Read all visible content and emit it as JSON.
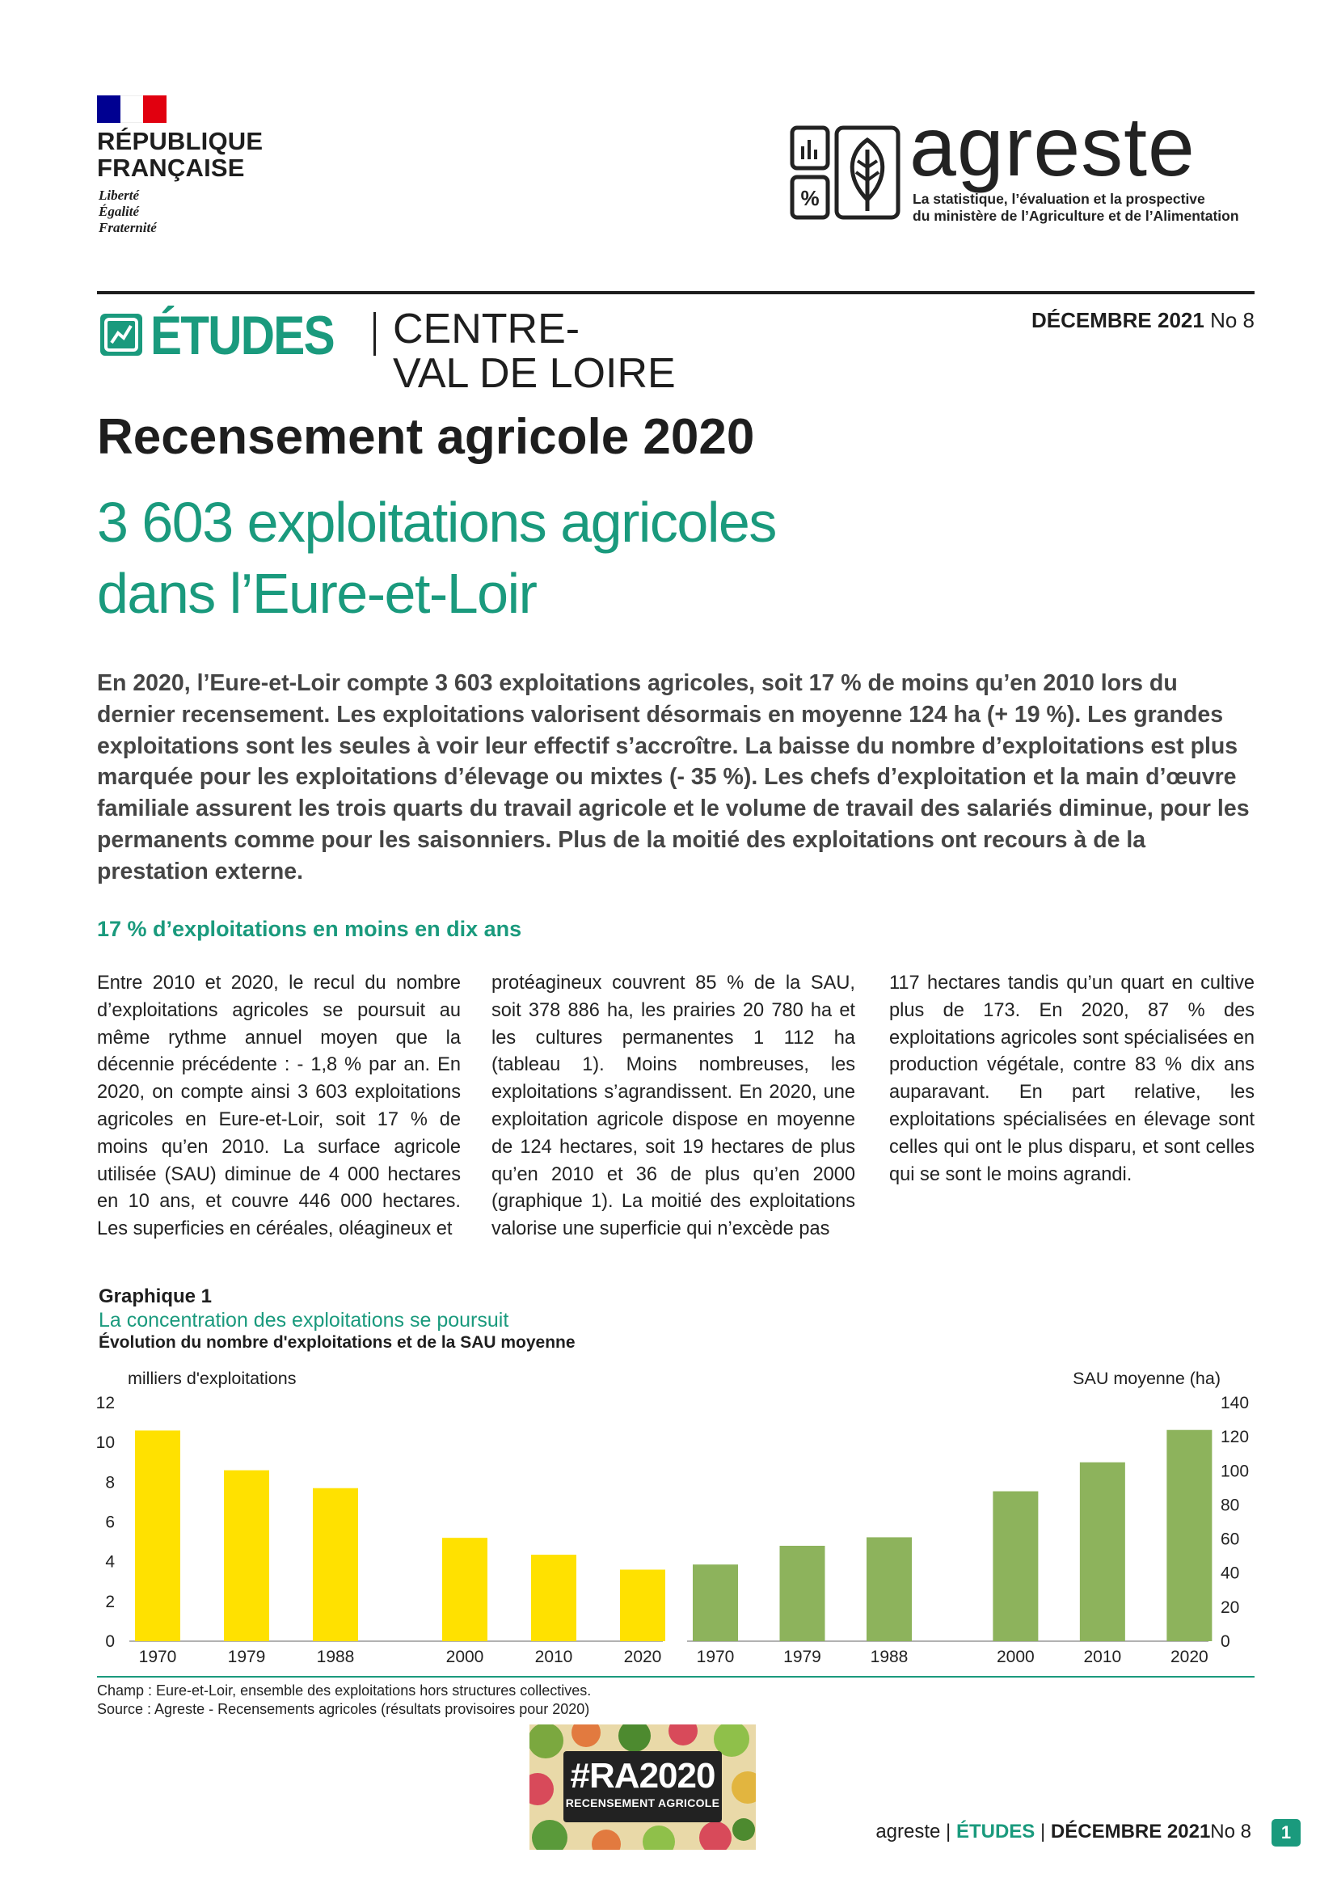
{
  "header": {
    "republic_line1": "RÉPUBLIQUE",
    "republic_line2": "FRANÇAISE",
    "motto1": "Liberté",
    "motto2": "Égalité",
    "motto3": "Fraternité",
    "brand": "agreste",
    "brand_tagline1": "La statistique, l’évaluation et la prospective",
    "brand_tagline2": "du ministère de l’Agriculture et de l’Alimentation",
    "flag_colors": [
      "#000091",
      "#ffffff",
      "#e1000f"
    ],
    "accent_color": "#1a9a7d"
  },
  "masthead": {
    "series": "ÉTUDES",
    "region_line1": "CENTRE-",
    "region_line2": "VAL DE LOIRE",
    "issue_date": "DÉCEMBRE 2021",
    "issue_number": "No 8"
  },
  "article": {
    "title": "Recensement agricole 2020",
    "subtitle_line1": "3 603 exploitations agricoles",
    "subtitle_line2": "dans l’Eure-et-Loir",
    "lead": "En 2020, l’Eure-et-Loir compte 3 603 exploitations agricoles, soit 17 % de moins qu’en 2010 lors du dernier recensement. Les exploitations valorisent désormais en moyenne 124 ha (+ 19 %). Les grandes exploitations sont les seules à voir leur effectif s’accroître. La baisse du nombre d’exploitations est plus marquée pour les exploitations d’élevage ou mixtes (- 35 %). Les chefs d’exploitation et la main d’œuvre familiale assurent les trois quarts du travail agricole et le volume de travail des salariés diminue, pour les permanents comme pour les saisonniers. Plus de la moitié des exploitations ont recours à de la prestation externe.",
    "section_heading": "17 % d’exploitations en moins en dix ans",
    "col1": "Entre 2010 et 2020, le recul du nombre d’exploitations agricoles se poursuit au même rythme annuel moyen que la décennie précédente : - 1,8 % par an. En 2020, on compte ainsi 3 603 exploitations agricoles en Eure-et-Loir, soit 17 % de moins qu’en 2010. La surface agricole utilisée (SAU) diminue de 4 000 hectares en 10 ans, et couvre 446 000 hectares. Les superficies en céréales, oléagineux et",
    "col2": "protéagineux couvrent 85 % de la SAU, soit 378 886 ha, les prairies 20 780 ha et les cultures permanentes 1 112 ha (tableau 1). Moins nombreuses, les exploitations s’agrandissent. En 2020, une exploitation agricole dispose en moyenne de 124 hectares, soit 19 hectares de plus qu’en 2010 et 36 de plus qu’en 2000 (graphique 1). La moitié des exploitations valorise une superficie qui n’excède pas",
    "col3": "117 hectares tandis qu’un quart en cultive plus de 173. En 2020, 87 % des exploitations agricoles sont spécialisées en production végétale, contre 83 % dix ans auparavant. En part relative, les exploitations spécialisées en élevage sont celles qui ont le plus disparu, et sont celles qui se sont le moins agrandi."
  },
  "figure": {
    "label": "Graphique 1",
    "title": "La concentration des exploitations se poursuit",
    "subtitle": "Évolution du nombre d'exploitations et de la SAU moyenne",
    "champ": "Champ : Eure-et-Loir, ensemble des exploitations hors structures collectives.",
    "source": "Source : Agreste - Recensements agricoles (résultats provisoires pour 2020)"
  },
  "chart_data": {
    "type": "bar",
    "title": "La concentration des exploitations se poursuit",
    "subtitle": "Évolution du nombre d'exploitations et de la SAU moyenne",
    "grid": false,
    "legend": "none",
    "panels": [
      {
        "ylabel": "milliers d'exploitations",
        "axis": "left",
        "ylim": [
          0,
          12
        ],
        "yticks": [
          "0",
          "2",
          "4",
          "6",
          "8",
          "10",
          "12"
        ],
        "categories": [
          "1970",
          "1979",
          "1988",
          "2000",
          "2010",
          "2020"
        ],
        "values": [
          10.6,
          8.6,
          7.7,
          5.2,
          4.35,
          3.6
        ],
        "color": "#ffe100"
      },
      {
        "ylabel": "SAU moyenne (ha)",
        "axis": "right",
        "ylim": [
          0,
          140
        ],
        "yticks": [
          "0",
          "20",
          "40",
          "60",
          "80",
          "100",
          "120",
          "140"
        ],
        "categories": [
          "1970",
          "1979",
          "1988",
          "2000",
          "2010",
          "2020"
        ],
        "values": [
          45,
          56,
          61,
          88,
          105,
          124
        ],
        "color": "#8db35c"
      }
    ]
  },
  "badge": {
    "tag": "#RA2020",
    "line": "RECENSEMENT AGRICOLE"
  },
  "footer": {
    "brand": "agreste",
    "sep": "|",
    "series": "ÉTUDES",
    "date": "DÉCEMBRE 2021",
    "number": "No 8",
    "page": "1"
  }
}
